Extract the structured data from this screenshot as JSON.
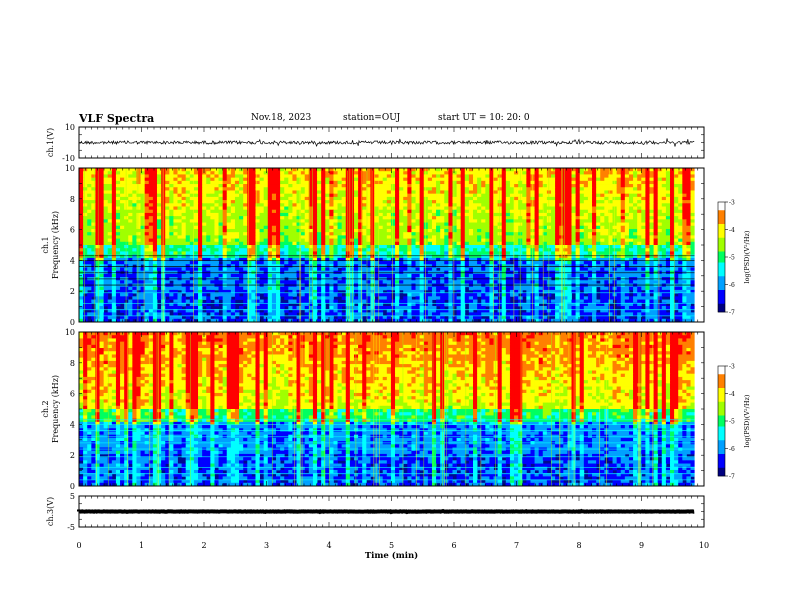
{
  "header": {
    "title": "VLF Spectra",
    "date": "Nov.18, 2023",
    "station": "station=OUJ",
    "start": "start  UT  =   10: 20: 0"
  },
  "chart_data": [
    {
      "type": "line",
      "panel": "ch.1 waveform",
      "ylabel": "ch.1(V)",
      "ylim": [
        -10,
        10
      ],
      "yticks": [
        "10",
        "-10"
      ],
      "xlim": [
        0,
        10
      ],
      "level": 0,
      "data_end_min": 9.85
    },
    {
      "type": "heatmap",
      "panel": "ch.1 spectrogram",
      "ylabel": "ch.1\nFrequency (kHz)",
      "ylim": [
        0,
        10
      ],
      "yticks": [
        "0",
        "2",
        "4",
        "6",
        "8",
        "10"
      ],
      "xlim": [
        0,
        10
      ],
      "data_end_min": 9.85,
      "colorbar": {
        "label": "log(PSD)(V²/Hz)",
        "range": [
          -7,
          -3
        ],
        "ticks": [
          "-3",
          "-4",
          "-5",
          "-6",
          "-7"
        ]
      }
    },
    {
      "type": "heatmap",
      "panel": "ch.2 spectrogram",
      "ylabel": "ch.2\nFrequency (kHz)",
      "ylim": [
        0,
        10
      ],
      "yticks": [
        "0",
        "2",
        "4",
        "6",
        "8",
        "10"
      ],
      "xlim": [
        0,
        10
      ],
      "data_end_min": 9.85,
      "colorbar": {
        "label": "log(PSD)(V²/Hz)",
        "range": [
          -7,
          -3
        ],
        "ticks": [
          "-3",
          "-4",
          "-5",
          "-6",
          "-7"
        ]
      }
    },
    {
      "type": "line",
      "panel": "ch.3 waveform",
      "ylabel": "ch.3(V)",
      "ylim": [
        -5,
        5
      ],
      "yticks": [
        "5",
        "-5"
      ],
      "xlim": [
        0,
        10
      ],
      "level": 0,
      "data_end_min": 9.85,
      "xlabel": "Time (min)",
      "xticks": [
        "0",
        "1",
        "2",
        "3",
        "4",
        "5",
        "6",
        "7",
        "8",
        "9",
        "10"
      ]
    }
  ],
  "colormap": [
    "#000080",
    "#0000ff",
    "#00a0ff",
    "#00ffff",
    "#00ff60",
    "#a0ff00",
    "#ffff00",
    "#ff8000",
    "#ff0000",
    "#ffffff"
  ]
}
